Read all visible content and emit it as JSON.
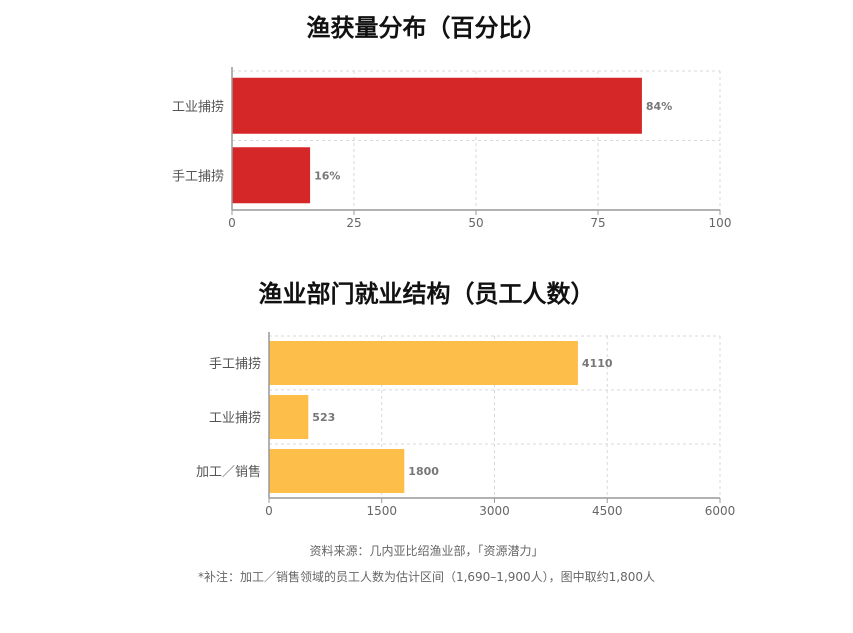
{
  "chart_data": [
    {
      "type": "bar",
      "orientation": "horizontal",
      "title": "渔获量分布（百分比）",
      "categories": [
        "工业捕捞",
        "手工捕捞"
      ],
      "values": [
        84,
        16
      ],
      "value_labels": [
        "84%",
        "16%"
      ],
      "xlim": [
        0,
        100
      ],
      "xticks": [
        0,
        25,
        50,
        75,
        100
      ],
      "grid": true,
      "color": "#d62728"
    },
    {
      "type": "bar",
      "orientation": "horizontal",
      "title": "渔业部门就业结构（员工人数）",
      "categories": [
        "手工捕捞",
        "工业捕捞",
        "加工／销售"
      ],
      "values": [
        4110,
        523,
        1800
      ],
      "value_labels": [
        "4110",
        "523",
        "1800"
      ],
      "xlim": [
        0,
        6000
      ],
      "xticks": [
        0,
        1500,
        3000,
        4500,
        6000
      ],
      "grid": true,
      "color": "#fdbf4a"
    }
  ],
  "footer": {
    "source": "资料来源：几内亚比绍渔业部，「资源潜力」",
    "note": "*补注：加工／销售领域的员工人数为估计区间（1,690–1,900人），图中取约1,800人"
  }
}
